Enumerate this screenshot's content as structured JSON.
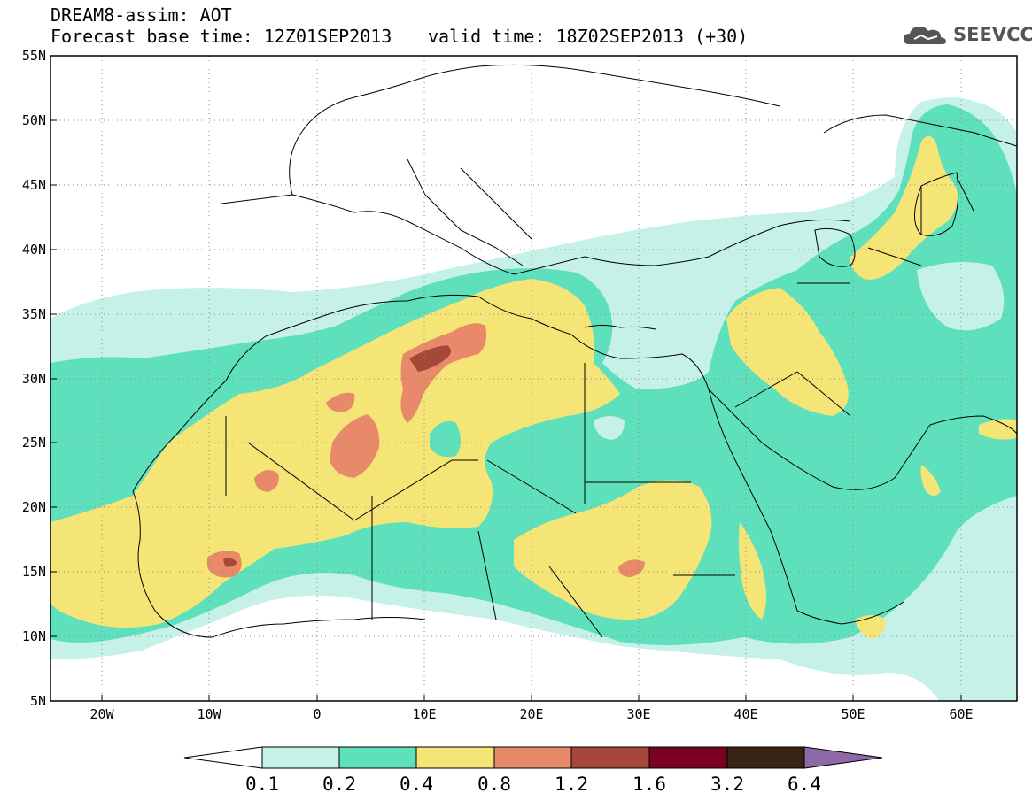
{
  "header": {
    "title": "DREAM8-assim: AOT",
    "base_time": "Forecast base time: 12Z01SEP2013",
    "valid_time": "valid time: 18Z02SEP2013 (+30)",
    "logo_text": "SEEVCCC"
  },
  "map": {
    "lat_labels": [
      "55N",
      "50N",
      "45N",
      "40N",
      "35N",
      "30N",
      "25N",
      "20N",
      "15N",
      "10N",
      "5N"
    ],
    "lon_labels": [
      "20W",
      "10W",
      "0",
      "10E",
      "20E",
      "30E",
      "40E",
      "50E",
      "60E"
    ],
    "lon_range": [
      -25,
      65
    ],
    "lat_range": [
      5,
      55
    ]
  },
  "colorbar": {
    "labels": [
      "0.1",
      "0.2",
      "0.4",
      "0.8",
      "1.2",
      "1.6",
      "3.2",
      "6.4"
    ],
    "colors": [
      "#ffffff",
      "#c6f1e8",
      "#5ee0bd",
      "#f5e576",
      "#e8896a",
      "#a6473a",
      "#7c0022",
      "#3a2414",
      "#8f68a8"
    ]
  }
}
